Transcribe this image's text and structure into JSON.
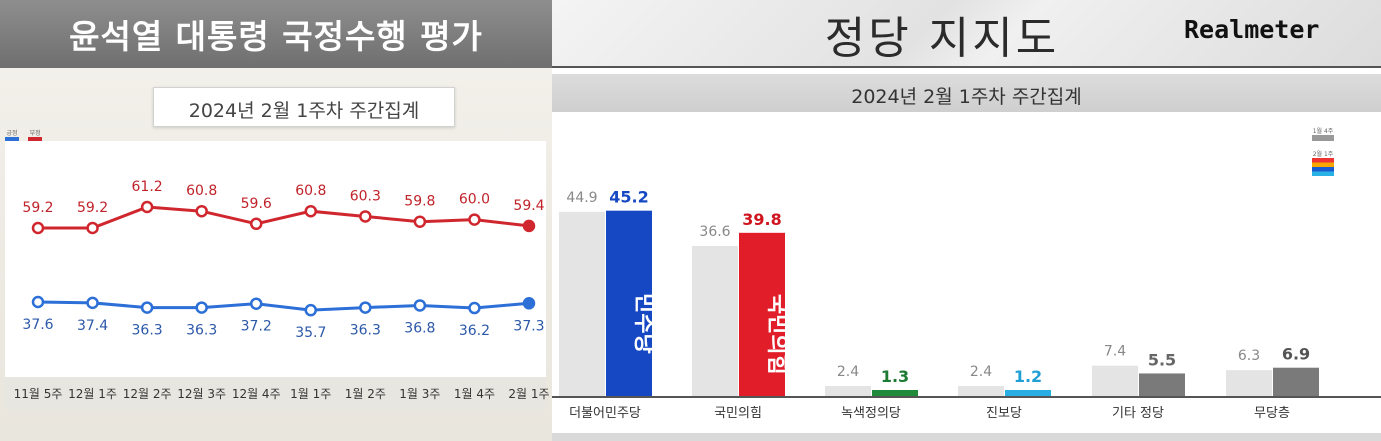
{
  "left": {
    "title": "윤석열 대통령 국정수행 평가",
    "subtitle": "2024년 2월 1주차 주간집계",
    "legend": [
      {
        "label": "긍정",
        "color": "#2c6fd6"
      },
      {
        "label": "부정",
        "color": "#d0272e"
      }
    ]
  },
  "right": {
    "title": "정당 지지도",
    "brand": "Realmeter",
    "subtitle": "2024년 2월 1주차 주간집계",
    "legend": [
      {
        "label": "1월 4주"
      },
      {
        "label": "2월 1주"
      }
    ]
  },
  "chart_data": [
    {
      "type": "line",
      "x": [
        "11월 5주",
        "12월 1주",
        "12월 2주",
        "12월 3주",
        "12월 4주",
        "1월 1주",
        "1월 2주",
        "1월 3주",
        "1월 4주",
        "2월 1주"
      ],
      "series": [
        {
          "name": "부정",
          "color": "#d0272e",
          "values": [
            59.2,
            59.2,
            61.2,
            60.8,
            59.6,
            60.8,
            60.3,
            59.8,
            60.0,
            59.4
          ]
        },
        {
          "name": "긍정",
          "color": "#2c6fd6",
          "values": [
            37.6,
            37.4,
            36.3,
            36.3,
            37.2,
            35.7,
            36.3,
            36.8,
            36.2,
            37.3
          ]
        }
      ]
    },
    {
      "type": "bar",
      "categories": [
        "더불어민주당",
        "국민의힘",
        "녹색정의당",
        "진보당",
        "기타 정당",
        "무당층"
      ],
      "series": [
        {
          "name": "1월 4주",
          "values": [
            44.9,
            36.6,
            2.4,
            2.4,
            7.4,
            6.3
          ]
        },
        {
          "name": "2월 1주",
          "values": [
            45.2,
            39.8,
            1.3,
            1.2,
            5.5,
            6.9
          ]
        }
      ],
      "bar_colors": [
        "#1748c4",
        "#e11d2a",
        "#1f8a3a",
        "#29aee3",
        "#7a7a7a",
        "#7a7a7a"
      ],
      "value_label_colors": [
        "#1748c4",
        "#d0141f",
        "#1d7a32",
        "#1e9fd6",
        "#666666",
        "#555555"
      ],
      "bar_text": [
        "민주당",
        "국민의힘",
        "",
        "",
        "",
        ""
      ]
    }
  ]
}
